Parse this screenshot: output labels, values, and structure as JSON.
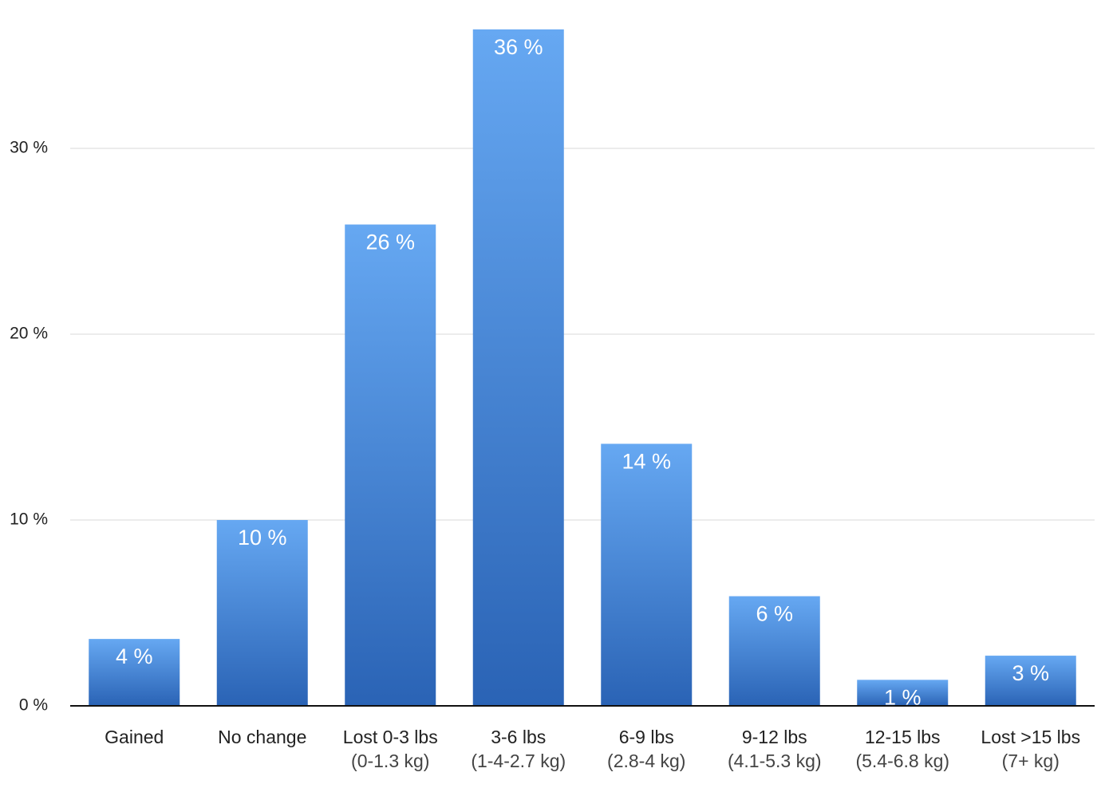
{
  "chart_data": {
    "type": "bar",
    "categories": [
      "Gained",
      "No change",
      "Lost 0-3 lbs",
      "3-6 lbs",
      "6-9 lbs",
      "9-12 lbs",
      "12-15 lbs",
      "Lost >15 lbs"
    ],
    "category_notes": [
      null,
      null,
      "(0-1.3 kg)",
      "(1-4-2.7 kg)",
      "(2.8-4 kg)",
      "(4.1-5.3 kg)",
      "(5.4-6.8 kg)",
      "(7+ kg)"
    ],
    "values": [
      3.6,
      10,
      25.9,
      36.4,
      14.1,
      5.9,
      1.4,
      2.7
    ],
    "value_labels": [
      "4 %",
      "10 %",
      "26 %",
      "36 %",
      "14 %",
      "6 %",
      "1 %",
      "3 %"
    ],
    "gradient": [
      "#66a8f2",
      "#2a63b5"
    ],
    "ylim": [
      0,
      36.5
    ],
    "yticks": [
      {
        "value": 0,
        "label": "0 %"
      },
      {
        "value": 10,
        "label": "10 %"
      },
      {
        "value": 20,
        "label": "20 %"
      },
      {
        "value": 30,
        "label": "30 %"
      }
    ],
    "grid": true
  }
}
